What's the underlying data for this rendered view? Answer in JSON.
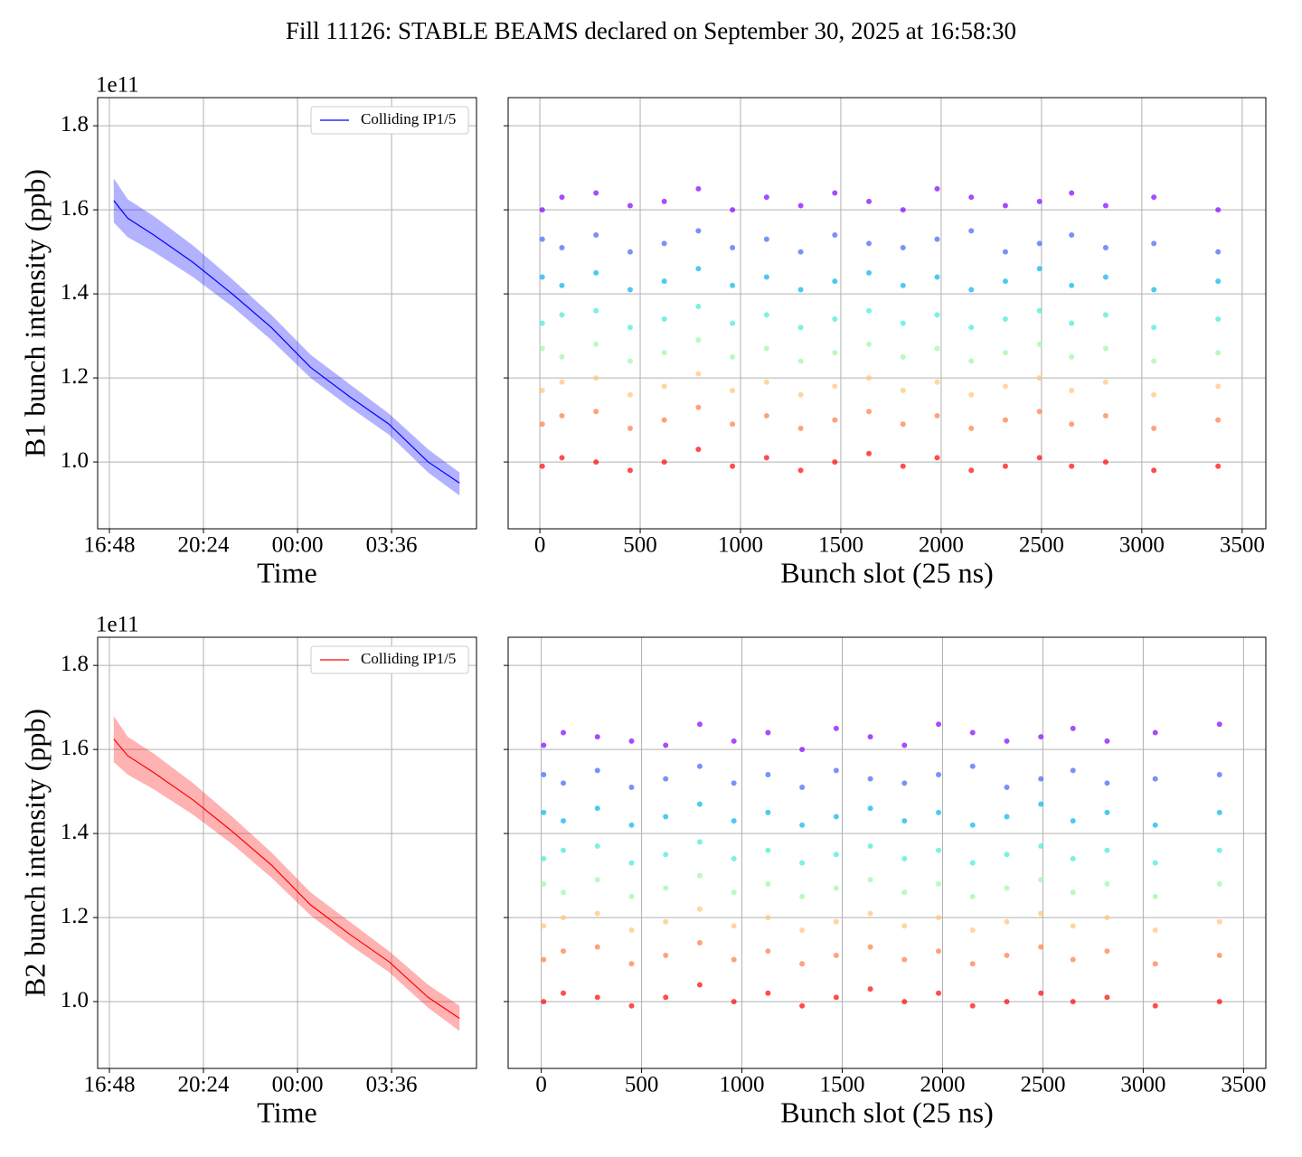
{
  "title": "Fill 11126: STABLE BEAMS declared on September 30, 2025 at 16:58:30",
  "chart_data": [
    {
      "type": "line",
      "ylabel": "B1 bunch intensity (ppb)",
      "y_offset_label": "1e11",
      "xlabel": "Time",
      "x": [
        "16:58",
        "17:30",
        "18:30",
        "20:00",
        "21:30",
        "23:00",
        "00:30",
        "02:00",
        "03:30",
        "05:00",
        "06:12"
      ],
      "series": [
        {
          "name": "Colliding IP1/5",
          "color": "#0000ff",
          "values": [
            1.622,
            1.58,
            1.54,
            1.475,
            1.4,
            1.32,
            1.225,
            1.155,
            1.09,
            1.0,
            0.95
          ],
          "lower": [
            1.57,
            1.535,
            1.5,
            1.44,
            1.37,
            1.29,
            1.2,
            1.13,
            1.065,
            0.975,
            0.92
          ],
          "upper": [
            1.675,
            1.625,
            1.585,
            1.515,
            1.435,
            1.35,
            1.255,
            1.185,
            1.115,
            1.03,
            0.975
          ]
        }
      ],
      "xlim": [
        "16:21",
        "06:51"
      ],
      "xticks": [
        "16:48",
        "20:24",
        "00:00",
        "03:36"
      ],
      "ylim": [
        0.841,
        1.867
      ],
      "yticks": [
        {
          "value": 1,
          "label": "1.0"
        },
        1.2,
        1.4,
        1.6,
        1.8
      ],
      "grid": true,
      "legend": "upper right"
    },
    {
      "type": "scatter",
      "xlabel": "Bunch slot (25 ns)",
      "x": [
        12,
        110,
        280,
        450,
        620,
        790,
        960,
        1130,
        1300,
        1470,
        1640,
        1810,
        1980,
        2150,
        2320,
        2490,
        2650,
        2820,
        3060,
        3380
      ],
      "series": [
        {
          "color": "#8000ff",
          "values": [
            1.6,
            1.63,
            1.64,
            1.61,
            1.62,
            1.65,
            1.6,
            1.63,
            1.61,
            1.64,
            1.62,
            1.6,
            1.65,
            1.63,
            1.61,
            1.62,
            1.64,
            1.61,
            1.63,
            1.6
          ]
        },
        {
          "color": "#3f64fa",
          "values": [
            1.53,
            1.51,
            1.54,
            1.5,
            1.52,
            1.55,
            1.51,
            1.53,
            1.5,
            1.54,
            1.52,
            1.51,
            1.53,
            1.55,
            1.5,
            1.52,
            1.54,
            1.51,
            1.52,
            1.5
          ]
        },
        {
          "color": "#00b4ec",
          "values": [
            1.44,
            1.42,
            1.45,
            1.41,
            1.43,
            1.46,
            1.42,
            1.44,
            1.41,
            1.43,
            1.45,
            1.42,
            1.44,
            1.41,
            1.43,
            1.46,
            1.42,
            1.44,
            1.41,
            1.43
          ]
        },
        {
          "color": "#40ecd4",
          "values": [
            1.33,
            1.35,
            1.36,
            1.32,
            1.34,
            1.37,
            1.33,
            1.35,
            1.32,
            1.34,
            1.36,
            1.33,
            1.35,
            1.32,
            1.34,
            1.36,
            1.33,
            1.35,
            1.32,
            1.34
          ]
        },
        {
          "color": "#9cf7a7",
          "values": [
            1.27,
            1.25,
            1.28,
            1.24,
            1.26,
            1.29,
            1.25,
            1.27,
            1.24,
            1.26,
            1.28,
            1.25,
            1.27,
            1.24,
            1.26,
            1.28,
            1.25,
            1.27,
            1.24,
            1.26
          ]
        },
        {
          "color": "#ffc474",
          "values": [
            1.17,
            1.19,
            1.2,
            1.16,
            1.18,
            1.21,
            1.17,
            1.19,
            1.16,
            1.18,
            1.2,
            1.17,
            1.19,
            1.16,
            1.18,
            1.2,
            1.17,
            1.19,
            1.16,
            1.18
          ]
        },
        {
          "color": "#ff7a40",
          "values": [
            1.09,
            1.11,
            1.12,
            1.08,
            1.1,
            1.13,
            1.09,
            1.11,
            1.08,
            1.1,
            1.12,
            1.09,
            1.11,
            1.08,
            1.1,
            1.12,
            1.09,
            1.11,
            1.08,
            1.1
          ]
        },
        {
          "color": "#ff0000",
          "values": [
            0.99,
            1.01,
            1.0,
            0.98,
            1.0,
            1.03,
            0.99,
            1.01,
            0.98,
            1.0,
            1.02,
            0.99,
            1.01,
            0.98,
            0.99,
            1.01,
            0.99,
            1.0,
            0.98,
            0.99
          ]
        }
      ],
      "xlim": [
        -158,
        3618
      ],
      "xticks": [
        0,
        500,
        1000,
        1500,
        2000,
        2500,
        3000,
        3500
      ],
      "ylim": [
        0.841,
        1.867
      ],
      "yticks": [
        1,
        1.2,
        1.4,
        1.6,
        1.8
      ],
      "grid": true
    },
    {
      "type": "line",
      "ylabel": "B2 bunch intensity (ppb)",
      "y_offset_label": "1e11",
      "xlabel": "Time",
      "x": [
        "16:58",
        "17:30",
        "18:30",
        "20:00",
        "21:30",
        "23:00",
        "00:30",
        "02:00",
        "03:30",
        "05:00",
        "06:12"
      ],
      "series": [
        {
          "name": "Colliding IP1/5",
          "color": "#ff0000",
          "values": [
            1.625,
            1.585,
            1.545,
            1.48,
            1.405,
            1.325,
            1.23,
            1.16,
            1.095,
            1.01,
            0.96
          ],
          "lower": [
            1.57,
            1.54,
            1.505,
            1.445,
            1.375,
            1.295,
            1.205,
            1.135,
            1.07,
            0.985,
            0.93
          ],
          "upper": [
            1.68,
            1.63,
            1.59,
            1.52,
            1.44,
            1.355,
            1.26,
            1.19,
            1.12,
            1.04,
            0.99
          ]
        }
      ],
      "xlim": [
        "16:21",
        "06:51"
      ],
      "xticks": [
        "16:48",
        "20:24",
        "00:00",
        "03:36"
      ],
      "ylim": [
        0.841,
        1.867
      ],
      "yticks": [
        {
          "value": 1,
          "label": "1.0"
        },
        1.2,
        1.4,
        1.6,
        1.8
      ],
      "grid": true,
      "legend": "upper right"
    },
    {
      "type": "scatter",
      "xlabel": "Bunch slot (25 ns)",
      "x": [
        12,
        110,
        280,
        450,
        620,
        790,
        960,
        1130,
        1300,
        1470,
        1640,
        1810,
        1980,
        2150,
        2320,
        2490,
        2650,
        2820,
        3060,
        3380
      ],
      "series": [
        {
          "color": "#8000ff",
          "values": [
            1.61,
            1.64,
            1.63,
            1.62,
            1.61,
            1.66,
            1.62,
            1.64,
            1.6,
            1.65,
            1.63,
            1.61,
            1.66,
            1.64,
            1.62,
            1.63,
            1.65,
            1.62,
            1.64,
            1.66
          ]
        },
        {
          "color": "#3f64fa",
          "values": [
            1.54,
            1.52,
            1.55,
            1.51,
            1.53,
            1.56,
            1.52,
            1.54,
            1.51,
            1.55,
            1.53,
            1.52,
            1.54,
            1.56,
            1.51,
            1.53,
            1.55,
            1.52,
            1.53,
            1.54
          ]
        },
        {
          "color": "#00b4ec",
          "values": [
            1.45,
            1.43,
            1.46,
            1.42,
            1.44,
            1.47,
            1.43,
            1.45,
            1.42,
            1.44,
            1.46,
            1.43,
            1.45,
            1.42,
            1.44,
            1.47,
            1.43,
            1.45,
            1.42,
            1.45
          ]
        },
        {
          "color": "#40ecd4",
          "values": [
            1.34,
            1.36,
            1.37,
            1.33,
            1.35,
            1.38,
            1.34,
            1.36,
            1.33,
            1.35,
            1.37,
            1.34,
            1.36,
            1.33,
            1.35,
            1.37,
            1.34,
            1.36,
            1.33,
            1.36
          ]
        },
        {
          "color": "#9cf7a7",
          "values": [
            1.28,
            1.26,
            1.29,
            1.25,
            1.27,
            1.3,
            1.26,
            1.28,
            1.25,
            1.27,
            1.29,
            1.26,
            1.28,
            1.25,
            1.27,
            1.29,
            1.26,
            1.28,
            1.25,
            1.28
          ]
        },
        {
          "color": "#ffc474",
          "values": [
            1.18,
            1.2,
            1.21,
            1.17,
            1.19,
            1.22,
            1.18,
            1.2,
            1.17,
            1.19,
            1.21,
            1.18,
            1.2,
            1.17,
            1.19,
            1.21,
            1.18,
            1.2,
            1.17,
            1.19
          ]
        },
        {
          "color": "#ff7a40",
          "values": [
            1.1,
            1.12,
            1.13,
            1.09,
            1.11,
            1.14,
            1.1,
            1.12,
            1.09,
            1.11,
            1.13,
            1.1,
            1.12,
            1.09,
            1.11,
            1.13,
            1.1,
            1.12,
            1.09,
            1.11
          ]
        },
        {
          "color": "#ff0000",
          "values": [
            1.0,
            1.02,
            1.01,
            0.99,
            1.01,
            1.04,
            1.0,
            1.02,
            0.99,
            1.01,
            1.03,
            1.0,
            1.02,
            0.99,
            1.0,
            1.02,
            1.0,
            1.01,
            0.99,
            1.0
          ]
        }
      ],
      "xlim": [
        -165,
        3611
      ],
      "xticks": [
        0,
        500,
        1000,
        1500,
        2000,
        2500,
        3000,
        3500
      ],
      "ylim": [
        0.841,
        1.867
      ],
      "yticks": [
        1,
        1.2,
        1.4,
        1.6,
        1.8
      ],
      "grid": true
    }
  ]
}
